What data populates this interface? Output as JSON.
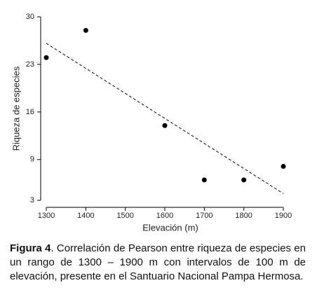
{
  "chart_data": {
    "type": "scatter",
    "x_label": "Elevación (m)",
    "y_label": "Riqueza de especies",
    "x": [
      1300,
      1400,
      1600,
      1700,
      1800,
      1900
    ],
    "values": [
      24,
      28,
      14,
      6,
      6,
      8
    ],
    "color": "#000000",
    "xlim": [
      1300,
      1900
    ],
    "xticks": [
      1300,
      1400,
      1500,
      1600,
      1700,
      1800,
      1900
    ],
    "ylim": [
      3,
      30
    ],
    "yticks": [
      3,
      9,
      16,
      23,
      30
    ],
    "trendline": {
      "x": [
        1300,
        1900
      ],
      "y": [
        26.1,
        4
      ],
      "color": "#000000"
    },
    "grid": false
  },
  "caption": {
    "label": "Figura 4",
    "text": ". Correlación de Pearson entre riqueza de especies en un rango de 1300 – 1900 m con intervalos de 100 m de elevación, presente en el Santuario Nacional Pampa Hermosa."
  }
}
